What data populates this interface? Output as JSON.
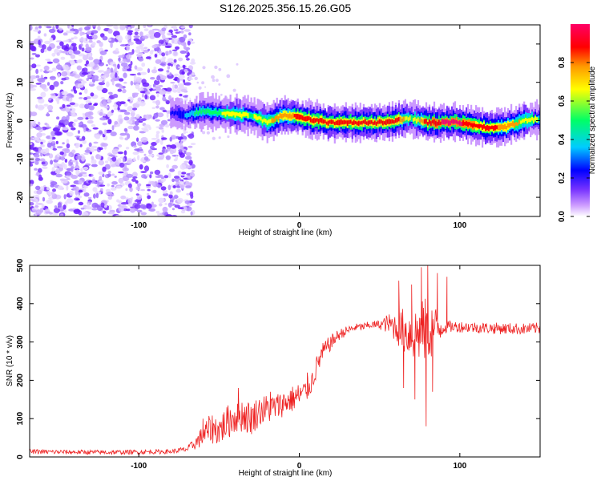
{
  "chart_data": [
    {
      "type": "heatmap",
      "title": "S126.2025.356.15.26.G05",
      "xlabel": "Height of straight line (km)",
      "ylabel": "Frequency (Hz)",
      "xlim": [
        -168,
        150
      ],
      "ylim": [
        -25,
        25
      ],
      "x_ticks": [
        -100,
        0,
        100
      ],
      "x_tick_labels": [
        "-100",
        "0",
        "100"
      ],
      "y_ticks": [
        -20,
        -10,
        0,
        10,
        20
      ],
      "y_tick_labels": [
        "-20",
        "-10",
        "0",
        "10",
        "20"
      ],
      "colorbar": {
        "label": "Normalized spectral amplitude",
        "range": [
          0,
          1
        ],
        "ticks": [
          0.0,
          0.2,
          0.4,
          0.6,
          0.8
        ],
        "tick_labels": [
          "0.0",
          "0.2",
          "0.4",
          "0.6",
          "0.8"
        ],
        "colors": [
          "#ffffff",
          "#cc99ff",
          "#7733ff",
          "#0000ff",
          "#00ccff",
          "#00ff66",
          "#ffff00",
          "#ff9900",
          "#ff0000",
          "#ff0066"
        ]
      },
      "noise_region_x": [
        -168,
        -68
      ],
      "ridge": {
        "x": [
          -80,
          -70,
          -60,
          -50,
          -40,
          -30,
          -20,
          -10,
          0,
          10,
          20,
          30,
          40,
          50,
          60,
          70,
          80,
          90,
          100,
          110,
          120,
          130,
          140,
          150
        ],
        "freq": [
          2,
          1.5,
          2.5,
          2,
          1.5,
          1.5,
          -0.5,
          1.5,
          1,
          0,
          -0.5,
          -0.5,
          -0.5,
          -0.5,
          0,
          0.5,
          -0.5,
          -0.5,
          -0.5,
          -1.5,
          -2,
          -1.5,
          0,
          0.5
        ],
        "amplitude": [
          0.3,
          0.4,
          0.6,
          0.6,
          0.7,
          0.6,
          0.7,
          0.8,
          0.85,
          0.9,
          0.9,
          0.85,
          0.9,
          0.9,
          0.9,
          0.6,
          0.9,
          0.95,
          0.95,
          0.9,
          0.85,
          0.8,
          0.7,
          0.6
        ]
      }
    },
    {
      "type": "line",
      "title": "",
      "xlabel": "Height of straight line (km)",
      "ylabel": "SNR (10 * v/v)",
      "xlim": [
        -168,
        150
      ],
      "ylim": [
        0,
        500
      ],
      "x_ticks": [
        -100,
        0,
        100
      ],
      "x_tick_labels": [
        "-100",
        "0",
        "100"
      ],
      "y_ticks": [
        0,
        100,
        200,
        300,
        400,
        500
      ],
      "y_tick_labels": [
        "0",
        "100",
        "200",
        "300",
        "400",
        "500"
      ],
      "series": [
        {
          "name": "SNR",
          "color": "#ee2222",
          "x": [
            -168,
            -150,
            -120,
            -100,
            -80,
            -70,
            -65,
            -60,
            -55,
            -50,
            -45,
            -40,
            -35,
            -30,
            -25,
            -20,
            -15,
            -10,
            -5,
            0,
            5,
            8,
            12,
            15,
            20,
            25,
            30,
            35,
            40,
            45,
            50,
            55,
            60,
            65,
            70,
            75,
            80,
            85,
            90,
            95,
            100,
            110,
            120,
            130,
            140,
            150
          ],
          "mean": [
            14,
            13,
            12,
            13,
            14,
            20,
            35,
            55,
            75,
            70,
            90,
            105,
            110,
            100,
            120,
            125,
            130,
            140,
            150,
            160,
            175,
            200,
            250,
            275,
            300,
            320,
            330,
            338,
            340,
            345,
            345,
            348,
            340,
            330,
            320,
            325,
            330,
            335,
            340,
            340,
            340,
            338,
            336,
            335,
            334,
            336
          ],
          "jitter": [
            6,
            6,
            6,
            6,
            6,
            8,
            15,
            30,
            40,
            40,
            45,
            45,
            45,
            45,
            40,
            40,
            35,
            35,
            35,
            35,
            30,
            30,
            30,
            25,
            20,
            15,
            12,
            10,
            10,
            10,
            12,
            25,
            40,
            60,
            70,
            80,
            90,
            60,
            20,
            15,
            15,
            15,
            15,
            15,
            15,
            15
          ],
          "spikes": [
            {
              "x": -60,
              "y": 100
            },
            {
              "x": -38,
              "y": 180
            },
            {
              "x": -18,
              "y": 170
            },
            {
              "x": 5,
              "y": 220
            },
            {
              "x": 62,
              "y": 460
            },
            {
              "x": 65,
              "y": 180
            },
            {
              "x": 70,
              "y": 450
            },
            {
              "x": 72,
              "y": 150
            },
            {
              "x": 76,
              "y": 495
            },
            {
              "x": 79,
              "y": 80
            },
            {
              "x": 80,
              "y": 500
            },
            {
              "x": 83,
              "y": 170
            },
            {
              "x": 86,
              "y": 480
            },
            {
              "x": 92,
              "y": 470
            }
          ]
        }
      ]
    }
  ]
}
